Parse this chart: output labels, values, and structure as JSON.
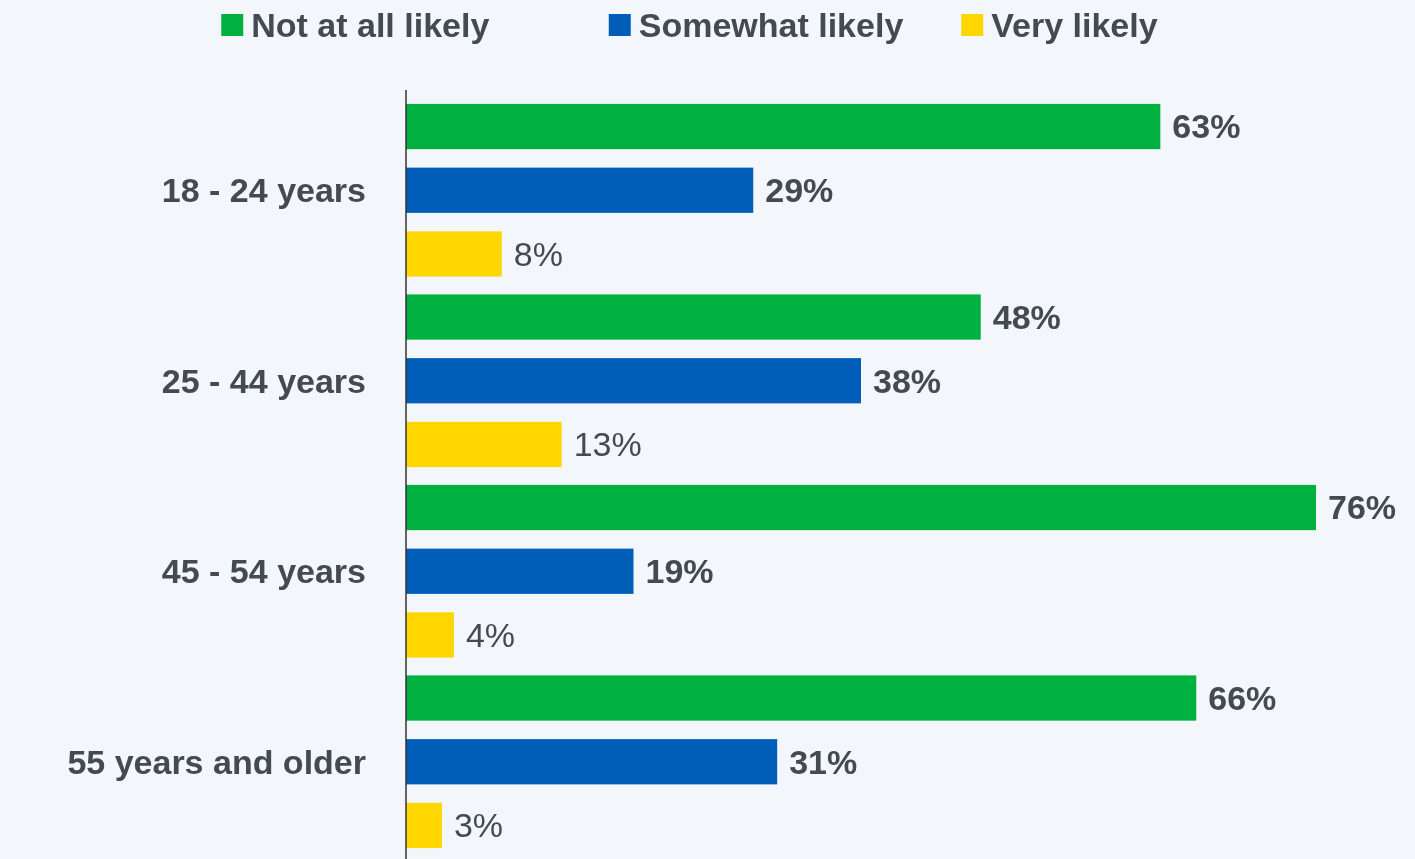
{
  "chart_data": {
    "type": "bar",
    "orientation": "horizontal",
    "categories": [
      "18 - 24 years",
      "25 - 44 years",
      "45 - 54 years",
      "55 years and older"
    ],
    "series": [
      {
        "name": "Not at all likely",
        "color": "#00b140",
        "values": [
          63,
          48,
          76,
          66
        ],
        "value_labels": [
          "63%",
          "48%",
          "76%",
          "66%"
        ]
      },
      {
        "name": "Somewhat likely",
        "color": "#005eb8",
        "values": [
          29,
          38,
          19,
          31
        ],
        "value_labels": [
          "29%",
          "38%",
          "19%",
          "31%"
        ]
      },
      {
        "name": "Very likely",
        "color": "#ffd600",
        "values": [
          8,
          13,
          4,
          3
        ],
        "value_labels": [
          "8%",
          "13%",
          "4%",
          "3%"
        ]
      }
    ],
    "legend": "top"
  }
}
